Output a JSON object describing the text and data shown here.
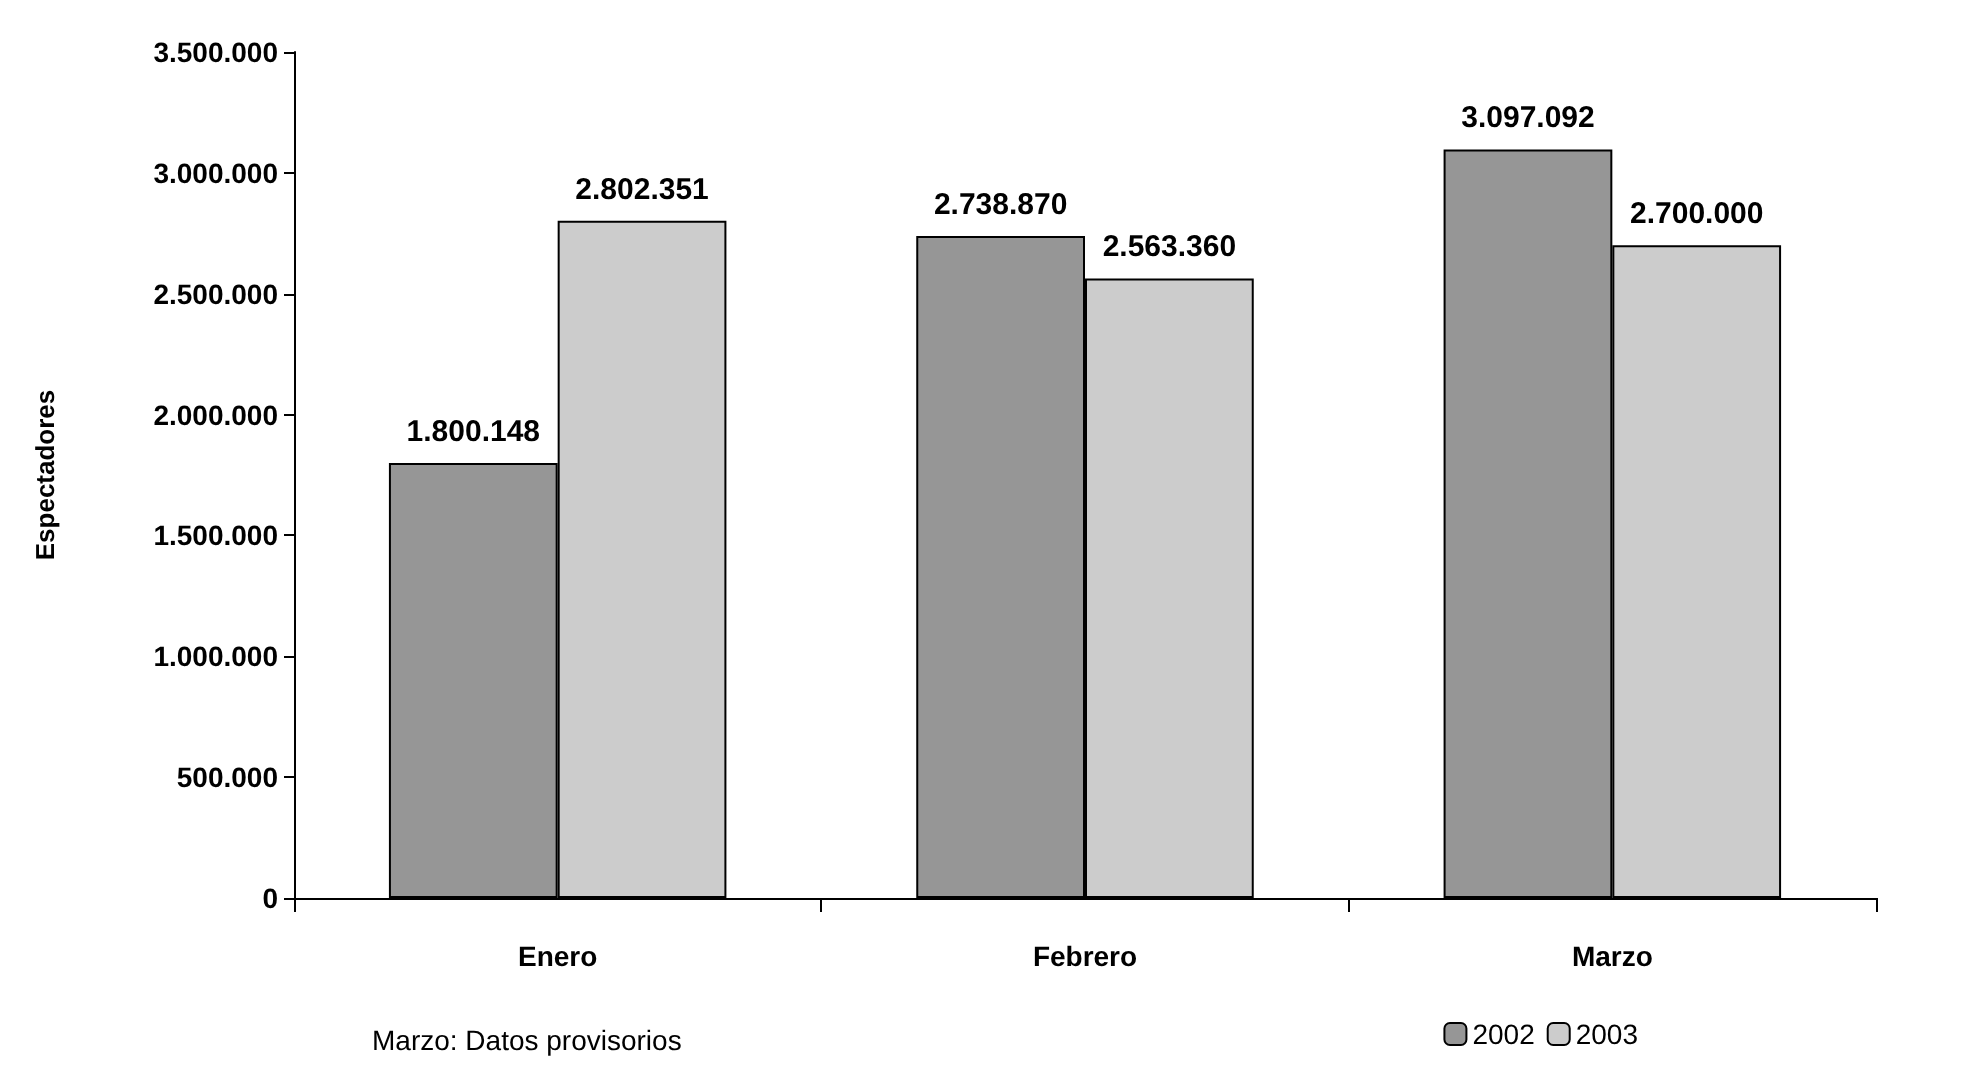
{
  "chart_data": {
    "type": "bar",
    "ylabel": "Espectadores",
    "categories": [
      "Enero",
      "Febrero",
      "Marzo"
    ],
    "series": [
      {
        "name": "2002",
        "color": "#969696",
        "values": [
          1800148,
          2738870,
          3097092
        ],
        "value_labels": [
          "1.800.148",
          "2.738.870",
          "3.097.092"
        ]
      },
      {
        "name": "2003",
        "color": "#cccccc",
        "values": [
          2802351,
          2563360,
          2700000
        ],
        "value_labels": [
          "2.802.351",
          "2.563.360",
          "2.700.000"
        ]
      }
    ],
    "ylim": [
      0,
      3500000
    ],
    "yticks": [
      {
        "value": 0,
        "label": "0"
      },
      {
        "value": 500000,
        "label": "500.000"
      },
      {
        "value": 1000000,
        "label": "1.000.000"
      },
      {
        "value": 1500000,
        "label": "1.500.000"
      },
      {
        "value": 2000000,
        "label": "2.000.000"
      },
      {
        "value": 2500000,
        "label": "2.500.000"
      },
      {
        "value": 3000000,
        "label": "3.000.000"
      },
      {
        "value": 3500000,
        "label": "3.500.000"
      }
    ],
    "grid": false,
    "legend": "bottom right",
    "annotations": [
      "Marzo: Datos provisorios"
    ]
  }
}
